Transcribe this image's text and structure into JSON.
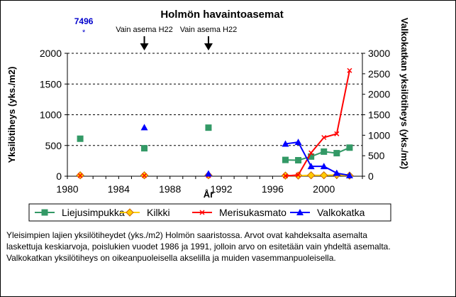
{
  "chart_data": {
    "type": "line",
    "title": "Holmön havaintoasemat",
    "xlabel": "År",
    "ylabel_left": "Yksilötiheys (yks./m2)",
    "ylabel_right": "Valkokatkan yksilötiheys (yks./m2)",
    "xlim": [
      1980,
      2003
    ],
    "xticks": [
      "1980",
      "1984",
      "1988",
      "1992",
      "1996",
      "2000"
    ],
    "ylim_left": [
      0,
      2000
    ],
    "yticks_left": [
      "0",
      "500",
      "1000",
      "1500",
      "2000"
    ],
    "ylim_right": [
      0,
      3000
    ],
    "yticks_right": [
      "0",
      "500",
      "1000",
      "1500",
      "2000",
      "2500",
      "3000"
    ],
    "grid": "horizontal dashed",
    "legend_position": "bottom",
    "series": [
      {
        "name": "Liejusimpukka",
        "axis": "left",
        "color": "#339966",
        "marker": "square",
        "points": [
          [
            1981,
            610
          ],
          [
            1986,
            455
          ],
          [
            1991,
            790
          ]
        ],
        "line": [
          [
            1997,
            265
          ],
          [
            1998,
            260
          ],
          [
            1999,
            320
          ],
          [
            2000,
            400
          ],
          [
            2001,
            375
          ],
          [
            2002,
            465
          ]
        ]
      },
      {
        "name": "Kilkki",
        "axis": "left",
        "color": "#ffcc00",
        "marker": "diamond",
        "points": [
          [
            1981,
            15
          ],
          [
            1986,
            15
          ],
          [
            1991,
            15
          ]
        ],
        "line": [
          [
            1997,
            10
          ],
          [
            1998,
            10
          ],
          [
            1999,
            15
          ],
          [
            2000,
            15
          ],
          [
            2001,
            20
          ],
          [
            2002,
            10
          ]
        ]
      },
      {
        "name": "Merisukasmato",
        "axis": "left",
        "color": "#ff0000",
        "marker": "cross",
        "points": [
          [
            1981,
            10
          ],
          [
            1986,
            10
          ],
          [
            1991,
            10
          ]
        ],
        "line": [
          [
            1997,
            5
          ],
          [
            1998,
            20
          ],
          [
            1999,
            380
          ],
          [
            2000,
            630
          ],
          [
            2001,
            690
          ],
          [
            2002,
            1720
          ]
        ]
      },
      {
        "name": "Valkokatka",
        "axis": "right",
        "color": "#0000ff",
        "marker": "triangle",
        "points": [
          [
            1986,
            1190
          ],
          [
            1991,
            60
          ]
        ],
        "line": [
          [
            1997,
            790
          ],
          [
            1998,
            830
          ],
          [
            1999,
            240
          ],
          [
            2000,
            240
          ],
          [
            2001,
            75
          ],
          [
            2002,
            20
          ]
        ]
      }
    ],
    "annotations": [
      {
        "text": "Vain asema H22",
        "x": 1986
      },
      {
        "text": "Vain asema H22",
        "x": 1991
      }
    ],
    "offscale_label": {
      "value": "7496",
      "marker": "*",
      "x": 1981
    }
  },
  "caption": {
    "lines": [
      "Yleisimpien lajien yksilötiheydet (yks./m2) Holmön saaristossa. Arvot ovat kahdeksalta asemalta",
      "laskettuja keskiarvoja, poislukien vuodet 1986 ja 1991, jolloin arvo on esitetään vain yhdeltä asemalta.",
      "Valkokatkan yksilötiheys on oikeanpuoleisella akselilla ja muiden vasemmanpuoleisella."
    ]
  }
}
